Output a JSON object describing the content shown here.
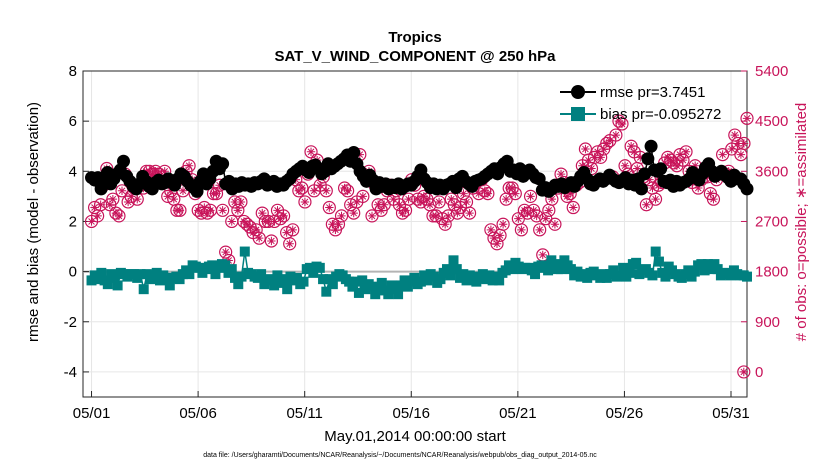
{
  "chart_data": {
    "type": "line",
    "title": "Tropics",
    "subtitle": "SAT_V_WIND_COMPONENT @ 250 hPa",
    "xlabel": "May.01,2014 00:00:00 start",
    "ylabel": "rmse and bias (model - observation)",
    "y2label": "# of obs: o=possible; ∗=assimilated",
    "footnote": "data file: /Users/gharamti/Documents/NCAR/Reanalysis/~/Documents/NCAR/Reanalysis/webpub/obs_diag_output_2014-05.nc",
    "xlim": [
      0.6,
      31.75
    ],
    "ylim": [
      -5,
      8
    ],
    "y2lim": [
      -450,
      5400
    ],
    "x_ticks": [
      1,
      6,
      11,
      16,
      21,
      26,
      31
    ],
    "x_tick_labels": [
      "05/01",
      "05/06",
      "05/11",
      "05/16",
      "05/21",
      "05/26",
      "05/31"
    ],
    "y_ticks": [
      -4,
      -2,
      0,
      2,
      4,
      6,
      8
    ],
    "y_tick_labels": [
      "-4",
      "-2",
      "0",
      "2",
      "4",
      "6",
      "8"
    ],
    "y2_ticks": [
      0,
      900,
      1800,
      2700,
      3600,
      4500,
      5400
    ],
    "y2_tick_labels": [
      "0",
      "900",
      "1800",
      "2700",
      "3600",
      "4500",
      "5400"
    ],
    "zero_line": 0,
    "legend_position": "top-right",
    "series": [
      {
        "name": "rmse",
        "label": "rmse pr=3.7451",
        "color": "#000000",
        "values": [
          3.75,
          3.65,
          3.75,
          3.3,
          3.55,
          3.95,
          3.5,
          3.7,
          3.9,
          4.05,
          4.4,
          3.8,
          3.6,
          3.4,
          3.3,
          3.5,
          3.8,
          3.6,
          3.4,
          3.3,
          3.55,
          3.65,
          3.5,
          3.55,
          3.7,
          3.6,
          3.45,
          3.7,
          3.9,
          3.8,
          3.6,
          3.45,
          3.35,
          3.2,
          3.6,
          3.9,
          3.5,
          3.7,
          4.0,
          4.4,
          4.1,
          4.3,
          3.5,
          3.6,
          3.3,
          3.5,
          3.4,
          3.55,
          3.45,
          3.5,
          3.4,
          3.55,
          3.5,
          3.6,
          3.7,
          3.45,
          3.5,
          3.6,
          3.4,
          3.5,
          3.45,
          3.6,
          3.7,
          3.9,
          4.0,
          4.1,
          4.2,
          4.05,
          3.95,
          4.2,
          4.25,
          4.1,
          3.9,
          4.0,
          4.3,
          4.1,
          4.2,
          4.3,
          4.4,
          4.5,
          4.65,
          4.4,
          4.75,
          4.3,
          4.0,
          3.8,
          3.6,
          3.85,
          3.65,
          3.3,
          3.55,
          3.4,
          3.5,
          3.3,
          3.45,
          3.35,
          3.5,
          3.3,
          3.4,
          3.5,
          3.45,
          3.6,
          3.8,
          4.05,
          3.7,
          3.55,
          3.35,
          3.5,
          3.3,
          3.45,
          3.3,
          3.45,
          3.5,
          3.6,
          3.35,
          3.7,
          3.8,
          3.6,
          3.5,
          3.4,
          3.6,
          3.65,
          3.7,
          3.8,
          3.9,
          4.0,
          4.1,
          3.9,
          4.15,
          4.3,
          4.4,
          4.0,
          4.05,
          3.9,
          4.1,
          3.8,
          3.95,
          4.05,
          3.9,
          3.75,
          3.7,
          3.25,
          3.35,
          3.2,
          3.3,
          3.45,
          3.4,
          3.5,
          3.35,
          3.45,
          3.55,
          3.4,
          3.6,
          3.8,
          3.95,
          3.7,
          3.5,
          3.45,
          3.6,
          3.7,
          3.6,
          3.7,
          3.85,
          3.7,
          3.6,
          3.55,
          3.65,
          3.75,
          3.5,
          3.65,
          3.45,
          3.7,
          3.3,
          3.9,
          4.5,
          5.0,
          4.05,
          4.0,
          4.1,
          3.6,
          3.55,
          3.65,
          3.4,
          3.6,
          3.45,
          3.55,
          3.6,
          3.7,
          3.95,
          3.85,
          3.65,
          3.9,
          4.15,
          4.3,
          4.0,
          3.8,
          3.9,
          4.0,
          3.85,
          3.75,
          3.6,
          3.85,
          3.7,
          3.7,
          3.5,
          3.3
        ]
      },
      {
        "name": "bias",
        "label": "bias pr=-0.095272",
        "color": "#008080",
        "values": [
          -0.35,
          -0.15,
          -0.3,
          -0.05,
          -0.35,
          -0.5,
          -0.1,
          -0.25,
          -0.55,
          -0.05,
          -0.1,
          -0.2,
          -0.1,
          -0.1,
          -0.25,
          -0.1,
          -0.7,
          -0.1,
          -0.3,
          -0.15,
          -0.05,
          -0.35,
          -0.15,
          -0.25,
          -0.55,
          -0.25,
          -0.2,
          -0.3,
          -0.1,
          0.05,
          -0.1,
          0.25,
          0.2,
          0.15,
          -0.05,
          0.1,
          0.2,
          0.25,
          -0.1,
          0.15,
          0.3,
          0.25,
          -0.05,
          0.1,
          -0.25,
          -0.5,
          -0.2,
          0.8,
          -0.05,
          -0.1,
          -0.2,
          -0.25,
          -0.1,
          -0.5,
          -0.3,
          -0.35,
          -0.55,
          -0.15,
          -0.3,
          -0.45,
          -0.7,
          -0.2,
          -0.35,
          -0.25,
          -0.5,
          -0.4,
          0.1,
          0.15,
          -0.05,
          0.2,
          0.15,
          -0.3,
          -0.8,
          -0.3,
          -0.5,
          -0.2,
          -0.1,
          -0.15,
          -0.3,
          -0.4,
          -0.6,
          -0.4,
          -0.85,
          -0.35,
          -0.7,
          -0.5,
          -0.6,
          -0.9,
          -0.65,
          -0.45,
          -0.75,
          -0.9,
          -0.55,
          -0.7,
          -0.9,
          -0.55,
          -0.35,
          -0.6,
          -0.4,
          -0.25,
          -0.5,
          -0.4,
          -0.15,
          -0.35,
          -0.1,
          -0.2,
          -0.45,
          -0.3,
          -0.05,
          0.1,
          -0.15,
          0.45,
          0.1,
          -0.25,
          -0.1,
          -0.35,
          -0.15,
          -0.2,
          -0.4,
          -0.25,
          -0.1,
          -0.3,
          -0.15,
          -0.35,
          -0.2,
          -0.35,
          -0.05,
          0.05,
          0.25,
          0.1,
          0.35,
          0.2,
          0.1,
          0.15,
          0.15,
          0.05,
          -0.1,
          0.2,
          0.25,
          0.15,
          0.05,
          0.45,
          0.3,
          0.1,
          0.1,
          0.45,
          0.25,
          0.1,
          -0.15,
          0.0,
          -0.2,
          -0.1,
          -0.25,
          -0.05,
          0.0,
          -0.15,
          -0.25,
          -0.1,
          -0.25,
          -0.1,
          0.05,
          -0.2,
          -0.15,
          0.15,
          -0.2,
          -0.05,
          0.3,
          0.35,
          -0.1,
          0.05,
          0.1,
          -0.05,
          -0.15,
          0.8,
          0.4,
          -0.05,
          -0.2,
          0.2,
          0.05,
          -0.1,
          -0.2,
          -0.25,
          -0.1,
          0.05,
          -0.2,
          0.0,
          0.25,
          0.3,
          0.05,
          0.3,
          0.1,
          0.3,
          0.1,
          -0.15,
          -0.05,
          -0.1,
          -0.15,
          0.05,
          -0.1,
          -0.15,
          -0.15,
          -0.2
        ]
      },
      {
        "name": "obs-possible",
        "label": "possible",
        "color": "#c8145a",
        "values": [
          2700,
          2950,
          2800,
          3000,
          3350,
          3650,
          3000,
          3100,
          2850,
          2800,
          3250,
          3550,
          3050,
          3150,
          3300,
          3100,
          3350,
          3300,
          3600,
          3600,
          3550,
          3600,
          3550,
          3500,
          3600,
          3150,
          3250,
          3100,
          2900,
          2900,
          3250,
          3600,
          3700,
          3450,
          3200,
          2900,
          2850,
          2950,
          2850,
          2900,
          3200,
          3200,
          3350,
          2900,
          2150,
          2000,
          2700,
          3050,
          2900,
          3050,
          2700,
          2650,
          2600,
          2500,
          2550,
          2400,
          2850,
          2700,
          2700,
          2350,
          2700,
          2900,
          2750,
          2800,
          2500,
          2300,
          2550,
          3450,
          3250,
          3300,
          3050,
          3550,
          3950,
          3250,
          3800,
          3350,
          3500,
          3250,
          2950,
          2650,
          2550,
          2650,
          2800,
          3300,
          3250,
          3000,
          2850,
          3050,
          3900,
          3150,
          3450,
          3600,
          2800,
          3350,
          3000,
          2900,
          3000,
          3250,
          3350,
          3100,
          3250,
          3000,
          2850,
          2900,
          3100,
          3450,
          3350,
          3100,
          3050,
          3150,
          3100,
          3000,
          2800,
          2800,
          3050,
          2750,
          2650,
          2800,
          3100,
          3000,
          2850,
          2950,
          3200,
          3050,
          2850,
          3300,
          3400,
          3200,
          3450,
          3250,
          3200,
          2550,
          2400,
          2300,
          2450,
          2650,
          3100,
          3300,
          3300,
          3200,
          2750,
          2550,
          2900,
          2850,
          3150,
          2900,
          2800,
          2550,
          2100,
          2750,
          2900,
          3100,
          2650,
          3300,
          3550,
          3400,
          3150,
          3200,
          2950,
          3350,
          3400,
          3700,
          4000,
          3800,
          3650,
          3850,
          3950,
          3850,
          4000,
          4100,
          4150,
          3500,
          4250,
          4500,
          4450,
          3700,
          3550,
          4050,
          3950,
          3650,
          3850,
          3500,
          3000,
          3450,
          3300,
          3100,
          3350,
          3400,
          3750,
          3850,
          3800,
          3750,
          3700,
          3900,
          3800,
          3950,
          3600,
          3400,
          3700,
          3300,
          3450,
          3500,
          3500,
          3200,
          3100,
          3450,
          3550,
          3900,
          3550,
          3600,
          4000,
          4250,
          4100,
          3900,
          4100,
          4550
        ]
      }
    ],
    "extra_points": [
      {
        "x": 31.6,
        "count": 0
      }
    ]
  }
}
